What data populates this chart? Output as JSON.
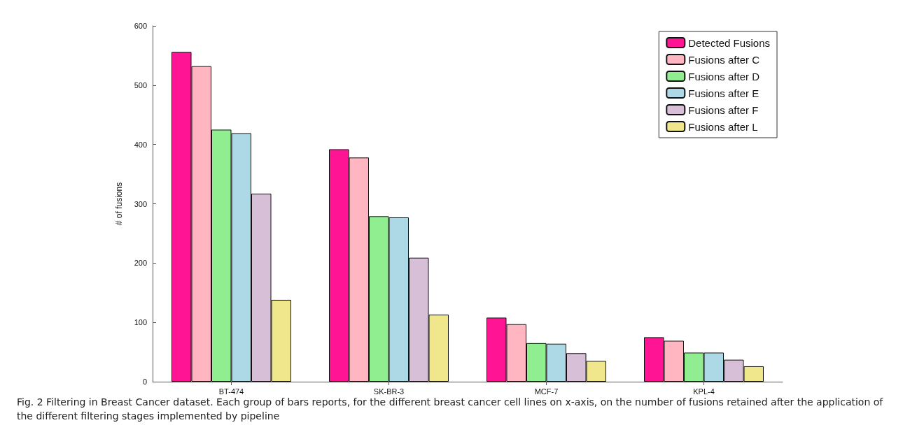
{
  "chart_data": {
    "type": "bar",
    "ylabel": "# of fusions",
    "categories": [
      "BT-474",
      "SK-BR-3",
      "MCF-7",
      "KPL-4"
    ],
    "series": [
      {
        "name": "Detected Fusions",
        "color": "#ff1493",
        "values": [
          556,
          392,
          108,
          75
        ]
      },
      {
        "name": "Fusions after C",
        "color": "#ffb6c1",
        "values": [
          532,
          378,
          97,
          69
        ]
      },
      {
        "name": "Fusions after D",
        "color": "#90ee90",
        "values": [
          425,
          279,
          65,
          49
        ]
      },
      {
        "name": "Fusions after E",
        "color": "#add8e6",
        "values": [
          419,
          277,
          64,
          49
        ]
      },
      {
        "name": "Fusions after F",
        "color": "#d8bfd8",
        "values": [
          317,
          209,
          48,
          37
        ]
      },
      {
        "name": "Fusions after L",
        "color": "#f0e68c",
        "values": [
          138,
          113,
          35,
          26
        ]
      }
    ],
    "ylim": [
      0,
      600
    ],
    "yticks": [
      0,
      100,
      200,
      300,
      400,
      500,
      600
    ],
    "grid": false,
    "legend": "top right",
    "annotations": [
      "Fig. 2 Filtering in Breast Cancer dataset. Each group of bars reports, for the different breast cancer cell lines on x-axis, on the number of fusions retained after the application of the different filtering stages implemented by pipeline"
    ]
  }
}
